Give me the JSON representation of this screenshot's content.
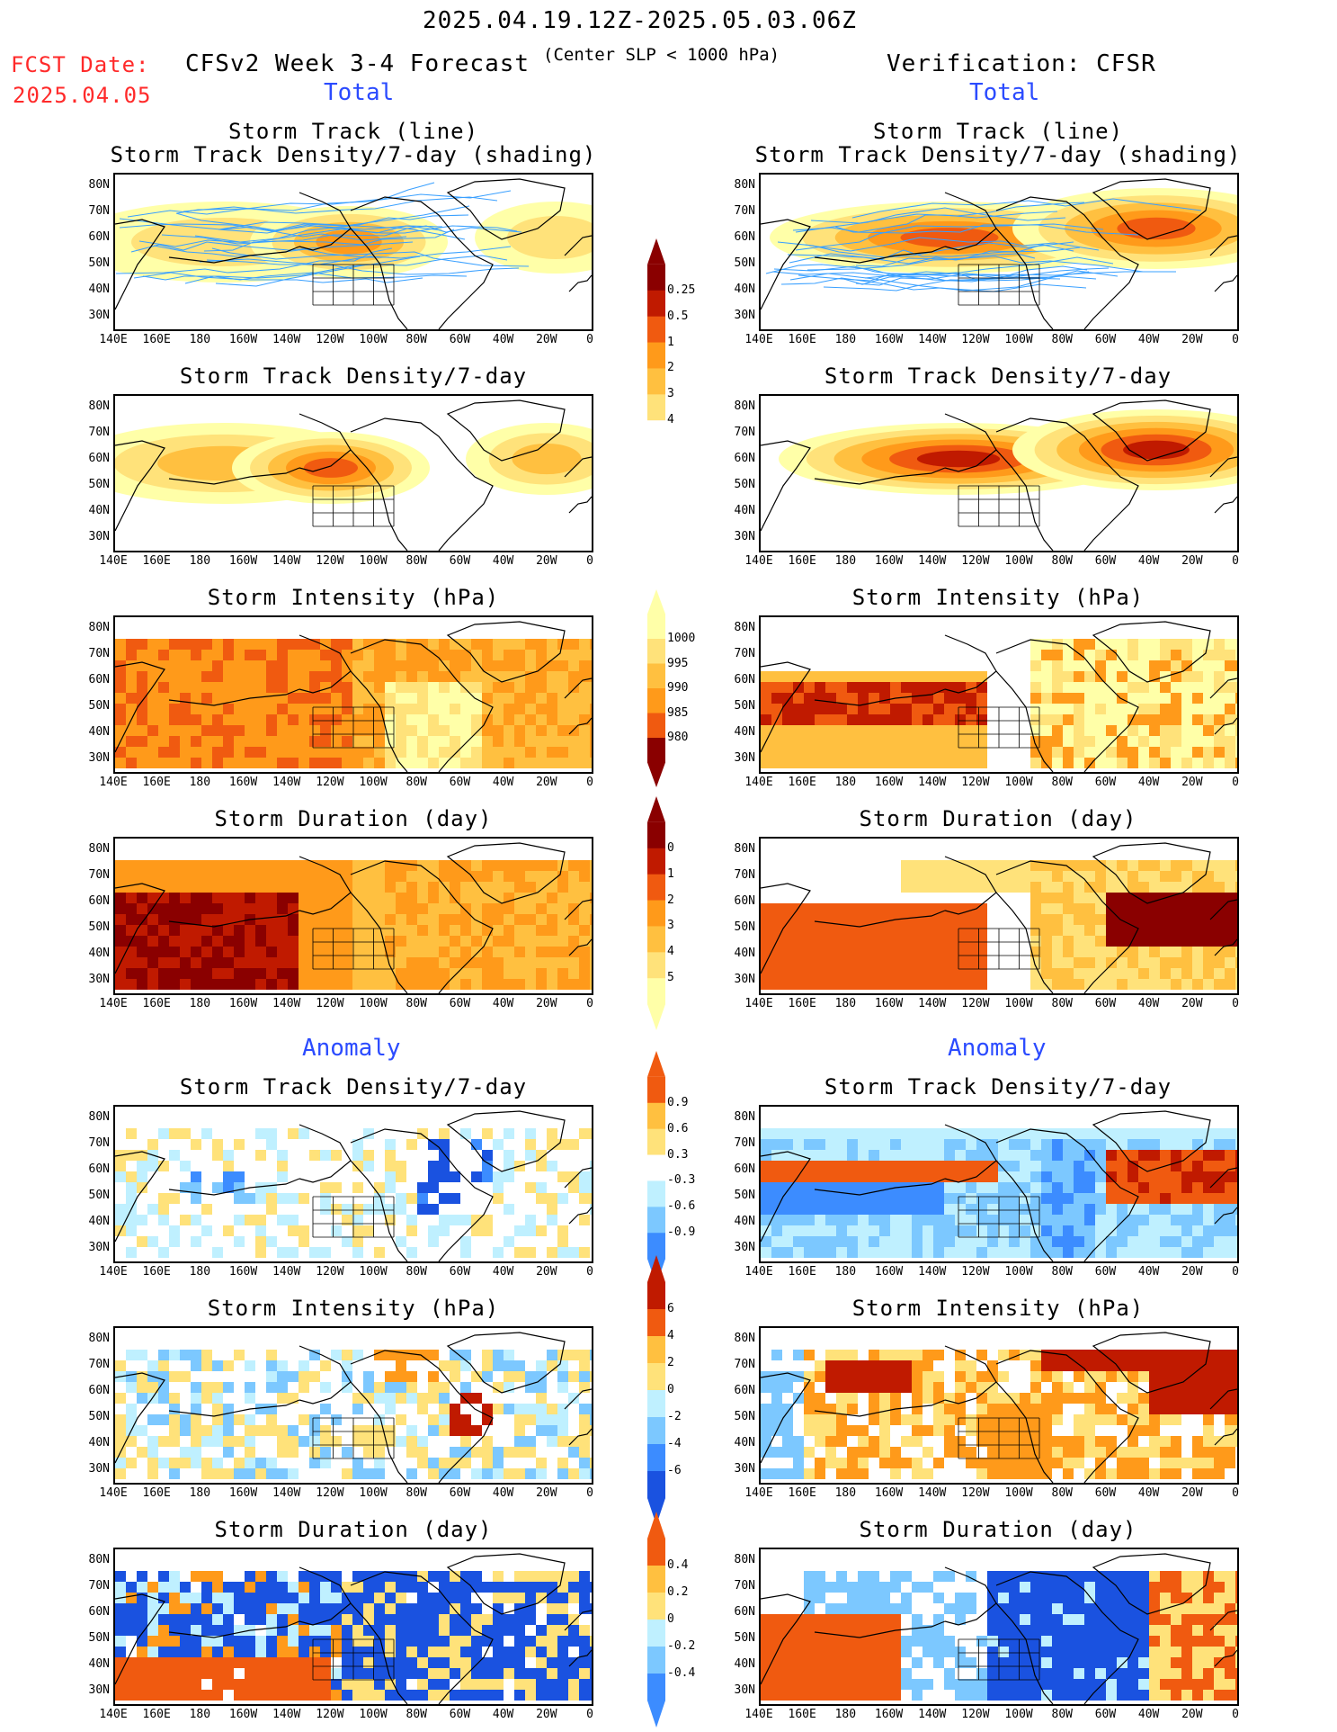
{
  "header": {
    "period": "2025.04.19.12Z-2025.05.03.06Z",
    "fcst_label": "FCST Date:",
    "fcst_date": "2025.04.05",
    "model": "CFSv2 Week 3-4 Forecast",
    "criterion": "(Center SLP < 1000 hPa)",
    "verification": "Verification: CFSR"
  },
  "sections": {
    "total": "Total",
    "anomaly": "Anomaly"
  },
  "panel_titles": {
    "track_line": "Storm Track (line)",
    "track_density_shading": "Storm Track Density/7-day (shading)",
    "track_density": "Storm Track Density/7-day",
    "intensity": "Storm Intensity (hPa)",
    "duration": "Storm Duration (day)"
  },
  "axes": {
    "lat_labels": [
      "80N",
      "70N",
      "60N",
      "50N",
      "40N",
      "30N"
    ],
    "lon_labels": [
      "140E",
      "160E",
      "180",
      "160W",
      "140W",
      "120W",
      "100W",
      "80W",
      "60W",
      "40W",
      "20W",
      "0"
    ]
  },
  "colorbars": {
    "density": [
      "0.25",
      "0.5",
      "1",
      "2",
      "3",
      "4"
    ],
    "intensity": [
      "1000",
      "995",
      "990",
      "985",
      "980"
    ],
    "duration": [
      "0",
      "1",
      "2",
      "3",
      "4",
      "5"
    ],
    "density_anom": [
      "0.9",
      "0.6",
      "0.3",
      "-0.3",
      "-0.6",
      "-0.9"
    ],
    "intensity_anom": [
      "6",
      "4",
      "2",
      "0",
      "-2",
      "-4",
      "-6"
    ],
    "duration_anom": [
      "0.4",
      "0.2",
      "0",
      "-0.2",
      "-0.4"
    ]
  },
  "colors": {
    "title_red": "#ff2a2a",
    "section_blue": "#2b4bff",
    "track_line": "#3aa0ff",
    "shade_1": "#ffffa8",
    "shade_2": "#ffe27a",
    "shade_3": "#ffc040",
    "shade_4": "#ff9a1a",
    "shade_5": "#f05a10",
    "shade_6": "#c01a00",
    "shade_7": "#8a0000",
    "neg_1": "#bff0ff",
    "neg_2": "#7cc8ff",
    "neg_3": "#3c8cff",
    "neg_4": "#1a52e0"
  }
}
